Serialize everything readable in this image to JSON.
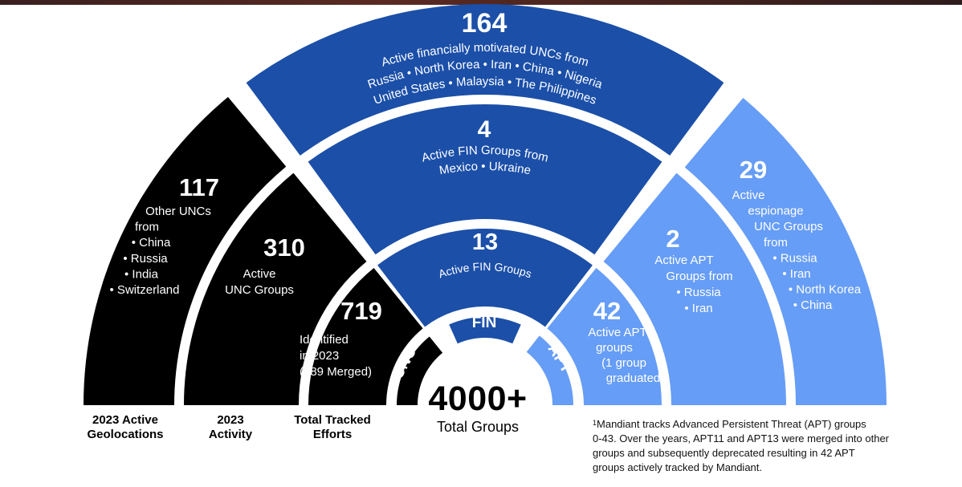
{
  "center": {
    "count": "4000+",
    "label": "Total Groups"
  },
  "bands": [
    {
      "key": "unc",
      "label": "UNC"
    },
    {
      "key": "fin",
      "label": "FIN"
    },
    {
      "key": "apt",
      "label": "APT"
    }
  ],
  "segments": {
    "tracked_unc": {
      "value": "719",
      "lines": [
        "Identified",
        "in 2023",
        "(189 Merged)"
      ]
    },
    "fin_groups": {
      "value": "13",
      "lines": [
        "Active FIN Groups"
      ]
    },
    "apt_groups": {
      "value": "42",
      "lines": [
        "Active APT",
        "groups",
        "(1 group",
        "graduated)"
      ]
    },
    "activity_unc": {
      "value": "310",
      "lines": [
        "Active",
        "UNC Groups"
      ]
    },
    "activity_fin": {
      "value": "4",
      "lines": [
        "Active FIN Groups from",
        "Mexico  •  Ukraine"
      ]
    },
    "activity_apt": {
      "value": "2",
      "lines": [
        "Active APT",
        "Groups from",
        "• Russia",
        "• Iran"
      ]
    },
    "geo_other": {
      "value": "117",
      "lines": [
        "Other UNCs",
        "from",
        "• China",
        "• Russia",
        "• India",
        "• Switzerland"
      ]
    },
    "geo_fin": {
      "value": "164",
      "lines": [
        "Active financially motivated UNCs from",
        "Russia  •  North Korea  •  Iran  •  China  •  Nigeria",
        "United States  •  Malaysia  •  The Philippines"
      ]
    },
    "geo_espionage": {
      "value": "29",
      "lines": [
        "Active",
        "espionage",
        "UNC Groups",
        "from",
        "• Russia",
        "• Iran",
        "• North Korea",
        "• China"
      ]
    }
  },
  "captions": [
    {
      "key": "geo",
      "lines": [
        "2023 Active",
        "Geolocations"
      ]
    },
    {
      "key": "activity",
      "lines": [
        "2023",
        "Activity"
      ]
    },
    {
      "key": "tracked",
      "lines": [
        "Total Tracked",
        "Efforts"
      ]
    }
  ],
  "footnote": {
    "marker": "1",
    "lines": [
      "Mandiant tracks Advanced Persistent Threat (APT) groups",
      "0-43. Over the years, APT11 and APT13 were merged into other",
      "groups and subsequently deprecated resulting in 42 APT",
      "groups actively tracked by Mandiant."
    ]
  },
  "colors": {
    "black": "#000000",
    "dark_blue": "#1b4fa8",
    "light_blue": "#669df6",
    "white": "#ffffff"
  }
}
